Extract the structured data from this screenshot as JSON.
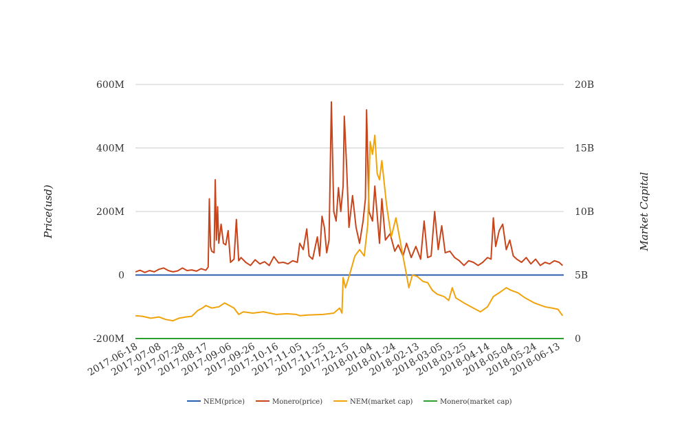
{
  "chart_data": {
    "type": "line",
    "ylabel": "Price(usd)",
    "y2label": "Market Capital",
    "ylim": [
      -200000000,
      600000000
    ],
    "y2lim": [
      0,
      20000000000
    ],
    "yticks": [
      {
        "value": -200000000,
        "label": "-200M"
      },
      {
        "value": 0,
        "label": "0"
      },
      {
        "value": 200000000,
        "label": "200M"
      },
      {
        "value": 400000000,
        "label": "400M"
      },
      {
        "value": 600000000,
        "label": "600M"
      }
    ],
    "y2ticks": [
      {
        "value": 0,
        "label": "0"
      },
      {
        "value": 5000000000,
        "label": "5B"
      },
      {
        "value": 10000000000,
        "label": "10B"
      },
      {
        "value": 15000000000,
        "label": "15B"
      },
      {
        "value": 20000000000,
        "label": "20B"
      }
    ],
    "xlim": [
      "2017-06-18",
      "2018-06-18"
    ],
    "xticks": [
      "2017-06-18",
      "2017-07-08",
      "2017-07-28",
      "2017-08-17",
      "2017-09-06",
      "2017-09-26",
      "2017-10-16",
      "2017-11-05",
      "2017-11-25",
      "2017-12-15",
      "2018-01-04",
      "2018-01-24",
      "2018-02-13",
      "2018-03-05",
      "2018-03-25",
      "2018-04-14",
      "2018-05-04",
      "2018-05-24",
      "2018-06-13"
    ],
    "grid": true,
    "legend_position": "bottom",
    "series": [
      {
        "name": "NEM(price)",
        "axis": "left",
        "color": "#2a5db0",
        "points": [
          [
            "2017-06-18",
            0
          ],
          [
            "2018-06-18",
            0
          ]
        ]
      },
      {
        "name": "Monero(price)",
        "axis": "left",
        "color": "#c8451b",
        "points": [
          [
            "2017-06-18",
            10000000
          ],
          [
            "2017-06-22",
            15000000
          ],
          [
            "2017-06-26",
            8000000
          ],
          [
            "2017-06-30",
            14000000
          ],
          [
            "2017-07-04",
            10000000
          ],
          [
            "2017-07-08",
            18000000
          ],
          [
            "2017-07-12",
            22000000
          ],
          [
            "2017-07-16",
            14000000
          ],
          [
            "2017-07-20",
            10000000
          ],
          [
            "2017-07-24",
            13000000
          ],
          [
            "2017-07-28",
            22000000
          ],
          [
            "2017-08-01",
            14000000
          ],
          [
            "2017-08-05",
            16000000
          ],
          [
            "2017-08-09",
            12000000
          ],
          [
            "2017-08-13",
            20000000
          ],
          [
            "2017-08-17",
            15000000
          ],
          [
            "2017-08-19",
            25000000
          ],
          [
            "2017-08-20",
            240000000
          ],
          [
            "2017-08-21",
            90000000
          ],
          [
            "2017-08-22",
            75000000
          ],
          [
            "2017-08-24",
            70000000
          ],
          [
            "2017-08-25",
            300000000
          ],
          [
            "2017-08-26",
            110000000
          ],
          [
            "2017-08-27",
            215000000
          ],
          [
            "2017-08-28",
            100000000
          ],
          [
            "2017-08-30",
            160000000
          ],
          [
            "2017-09-01",
            100000000
          ],
          [
            "2017-09-03",
            95000000
          ],
          [
            "2017-09-05",
            140000000
          ],
          [
            "2017-09-07",
            40000000
          ],
          [
            "2017-09-10",
            50000000
          ],
          [
            "2017-09-12",
            175000000
          ],
          [
            "2017-09-14",
            45000000
          ],
          [
            "2017-09-16",
            55000000
          ],
          [
            "2017-09-20",
            40000000
          ],
          [
            "2017-09-24",
            30000000
          ],
          [
            "2017-09-28",
            48000000
          ],
          [
            "2017-10-02",
            35000000
          ],
          [
            "2017-10-06",
            42000000
          ],
          [
            "2017-10-10",
            30000000
          ],
          [
            "2017-10-14",
            58000000
          ],
          [
            "2017-10-18",
            38000000
          ],
          [
            "2017-10-22",
            40000000
          ],
          [
            "2017-10-26",
            35000000
          ],
          [
            "2017-10-30",
            45000000
          ],
          [
            "2017-11-03",
            40000000
          ],
          [
            "2017-11-05",
            100000000
          ],
          [
            "2017-11-08",
            80000000
          ],
          [
            "2017-11-11",
            145000000
          ],
          [
            "2017-11-13",
            60000000
          ],
          [
            "2017-11-16",
            50000000
          ],
          [
            "2017-11-20",
            120000000
          ],
          [
            "2017-11-22",
            60000000
          ],
          [
            "2017-11-24",
            185000000
          ],
          [
            "2017-11-26",
            150000000
          ],
          [
            "2017-11-28",
            70000000
          ],
          [
            "2017-11-30",
            110000000
          ],
          [
            "2017-12-02",
            545000000
          ],
          [
            "2017-12-04",
            200000000
          ],
          [
            "2017-12-06",
            170000000
          ],
          [
            "2017-12-08",
            275000000
          ],
          [
            "2017-12-10",
            200000000
          ],
          [
            "2017-12-12",
            280000000
          ],
          [
            "2017-12-13",
            500000000
          ],
          [
            "2017-12-15",
            340000000
          ],
          [
            "2017-12-17",
            150000000
          ],
          [
            "2017-12-20",
            250000000
          ],
          [
            "2017-12-23",
            150000000
          ],
          [
            "2017-12-26",
            100000000
          ],
          [
            "2017-12-29",
            170000000
          ],
          [
            "2017-12-31",
            240000000
          ],
          [
            "2018-01-01",
            520000000
          ],
          [
            "2018-01-03",
            200000000
          ],
          [
            "2018-01-06",
            170000000
          ],
          [
            "2018-01-08",
            280000000
          ],
          [
            "2018-01-12",
            100000000
          ],
          [
            "2018-01-14",
            240000000
          ],
          [
            "2018-01-17",
            110000000
          ],
          [
            "2018-01-21",
            130000000
          ],
          [
            "2018-01-25",
            75000000
          ],
          [
            "2018-01-28",
            95000000
          ],
          [
            "2018-02-01",
            60000000
          ],
          [
            "2018-02-04",
            100000000
          ],
          [
            "2018-02-08",
            55000000
          ],
          [
            "2018-02-12",
            90000000
          ],
          [
            "2018-02-16",
            50000000
          ],
          [
            "2018-02-19",
            170000000
          ],
          [
            "2018-02-22",
            55000000
          ],
          [
            "2018-02-25",
            60000000
          ],
          [
            "2018-02-28",
            200000000
          ],
          [
            "2018-03-03",
            80000000
          ],
          [
            "2018-03-06",
            155000000
          ],
          [
            "2018-03-09",
            70000000
          ],
          [
            "2018-03-13",
            75000000
          ],
          [
            "2018-03-17",
            55000000
          ],
          [
            "2018-03-21",
            45000000
          ],
          [
            "2018-03-25",
            30000000
          ],
          [
            "2018-03-29",
            45000000
          ],
          [
            "2018-04-02",
            40000000
          ],
          [
            "2018-04-06",
            30000000
          ],
          [
            "2018-04-10",
            40000000
          ],
          [
            "2018-04-14",
            55000000
          ],
          [
            "2018-04-17",
            50000000
          ],
          [
            "2018-04-19",
            180000000
          ],
          [
            "2018-04-21",
            90000000
          ],
          [
            "2018-04-24",
            140000000
          ],
          [
            "2018-04-27",
            160000000
          ],
          [
            "2018-04-30",
            80000000
          ],
          [
            "2018-05-03",
            110000000
          ],
          [
            "2018-05-06",
            60000000
          ],
          [
            "2018-05-09",
            50000000
          ],
          [
            "2018-05-13",
            40000000
          ],
          [
            "2018-05-17",
            55000000
          ],
          [
            "2018-05-21",
            35000000
          ],
          [
            "2018-05-25",
            50000000
          ],
          [
            "2018-05-29",
            30000000
          ],
          [
            "2018-06-02",
            40000000
          ],
          [
            "2018-06-06",
            35000000
          ],
          [
            "2018-06-10",
            45000000
          ],
          [
            "2018-06-14",
            40000000
          ],
          [
            "2018-06-17",
            30000000
          ]
        ]
      },
      {
        "name": "NEM(market cap)",
        "axis": "right",
        "color": "#f0a30a",
        "points": [
          [
            "2017-06-18",
            1800000000
          ],
          [
            "2017-06-24",
            1750000000
          ],
          [
            "2017-07-01",
            1600000000
          ],
          [
            "2017-07-08",
            1700000000
          ],
          [
            "2017-07-14",
            1500000000
          ],
          [
            "2017-07-20",
            1400000000
          ],
          [
            "2017-07-25",
            1600000000
          ],
          [
            "2017-07-31",
            1700000000
          ],
          [
            "2017-08-05",
            1750000000
          ],
          [
            "2017-08-10",
            2200000000
          ],
          [
            "2017-08-14",
            2400000000
          ],
          [
            "2017-08-17",
            2600000000
          ],
          [
            "2017-08-22",
            2400000000
          ],
          [
            "2017-08-28",
            2500000000
          ],
          [
            "2017-09-02",
            2800000000
          ],
          [
            "2017-09-06",
            2600000000
          ],
          [
            "2017-09-10",
            2400000000
          ],
          [
            "2017-09-14",
            1900000000
          ],
          [
            "2017-09-18",
            2100000000
          ],
          [
            "2017-09-26",
            2000000000
          ],
          [
            "2017-10-05",
            2100000000
          ],
          [
            "2017-10-16",
            1900000000
          ],
          [
            "2017-10-25",
            1950000000
          ],
          [
            "2017-11-02",
            1900000000
          ],
          [
            "2017-11-05",
            1800000000
          ],
          [
            "2017-11-12",
            1850000000
          ],
          [
            "2017-11-25",
            1900000000
          ],
          [
            "2017-12-04",
            2000000000
          ],
          [
            "2017-12-09",
            2400000000
          ],
          [
            "2017-12-11",
            2000000000
          ],
          [
            "2017-12-12",
            4800000000
          ],
          [
            "2017-12-14",
            4000000000
          ],
          [
            "2017-12-18",
            5200000000
          ],
          [
            "2017-12-22",
            6500000000
          ],
          [
            "2017-12-26",
            7000000000
          ],
          [
            "2017-12-30",
            6500000000
          ],
          [
            "2018-01-02",
            9000000000
          ],
          [
            "2018-01-04",
            15500000000
          ],
          [
            "2018-01-06",
            14500000000
          ],
          [
            "2018-01-08",
            16000000000
          ],
          [
            "2018-01-10",
            13000000000
          ],
          [
            "2018-01-12",
            12500000000
          ],
          [
            "2018-01-14",
            14000000000
          ],
          [
            "2018-01-18",
            10500000000
          ],
          [
            "2018-01-22",
            8000000000
          ],
          [
            "2018-01-26",
            9500000000
          ],
          [
            "2018-01-30",
            7500000000
          ],
          [
            "2018-02-04",
            5000000000
          ],
          [
            "2018-02-06",
            4000000000
          ],
          [
            "2018-02-09",
            5000000000
          ],
          [
            "2018-02-13",
            4900000000
          ],
          [
            "2018-02-18",
            4500000000
          ],
          [
            "2018-02-22",
            4400000000
          ],
          [
            "2018-02-26",
            3800000000
          ],
          [
            "2018-03-02",
            3500000000
          ],
          [
            "2018-03-08",
            3300000000
          ],
          [
            "2018-03-12",
            3000000000
          ],
          [
            "2018-03-15",
            4000000000
          ],
          [
            "2018-03-18",
            3200000000
          ],
          [
            "2018-03-25",
            2800000000
          ],
          [
            "2018-04-02",
            2400000000
          ],
          [
            "2018-04-08",
            2100000000
          ],
          [
            "2018-04-14",
            2500000000
          ],
          [
            "2018-04-19",
            3300000000
          ],
          [
            "2018-04-24",
            3600000000
          ],
          [
            "2018-04-30",
            4000000000
          ],
          [
            "2018-05-04",
            3800000000
          ],
          [
            "2018-05-10",
            3600000000
          ],
          [
            "2018-05-16",
            3200000000
          ],
          [
            "2018-05-24",
            2800000000
          ],
          [
            "2018-06-02",
            2500000000
          ],
          [
            "2018-06-08",
            2400000000
          ],
          [
            "2018-06-13",
            2300000000
          ],
          [
            "2018-06-17",
            1800000000
          ]
        ]
      },
      {
        "name": "Monero(market cap)",
        "axis": "right",
        "color": "#2ca02c",
        "points": [
          [
            "2017-06-18",
            0
          ],
          [
            "2018-06-18",
            0
          ]
        ]
      }
    ]
  }
}
